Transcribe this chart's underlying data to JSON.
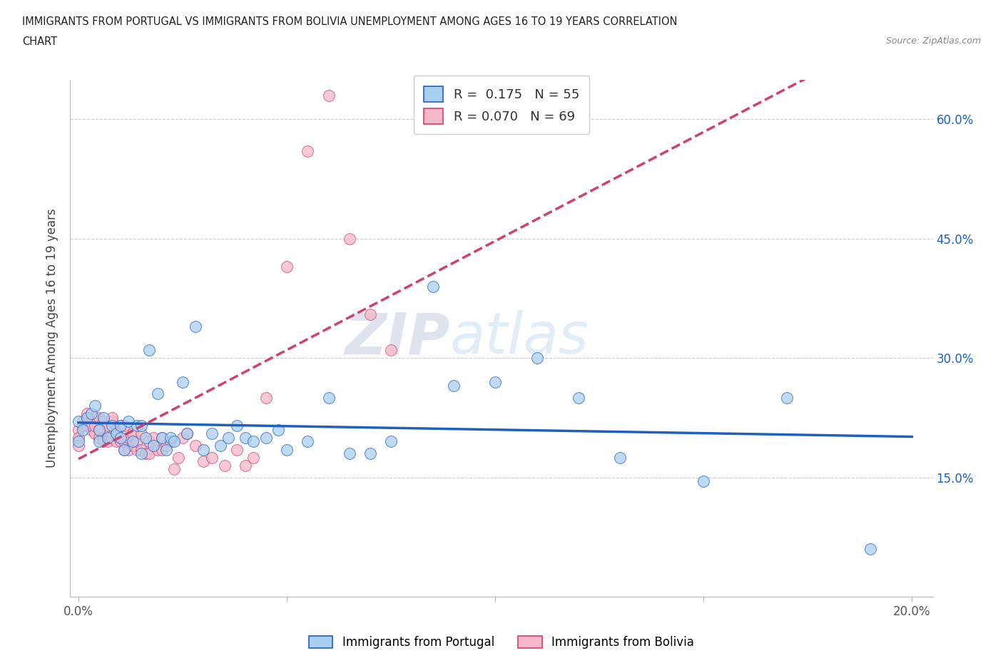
{
  "title_line1": "IMMIGRANTS FROM PORTUGAL VS IMMIGRANTS FROM BOLIVIA UNEMPLOYMENT AMONG AGES 16 TO 19 YEARS CORRELATION",
  "title_line2": "CHART",
  "source": "Source: ZipAtlas.com",
  "ylabel": "Unemployment Among Ages 16 to 19 years",
  "xlim": [
    -0.002,
    0.205
  ],
  "ylim": [
    0.0,
    0.65
  ],
  "xticks": [
    0.0,
    0.05,
    0.1,
    0.15,
    0.2
  ],
  "xticklabels": [
    "0.0%",
    "",
    "",
    "",
    "20.0%"
  ],
  "ytick_positions": [
    0.15,
    0.3,
    0.45,
    0.6
  ],
  "yticklabels": [
    "15.0%",
    "30.0%",
    "45.0%",
    "60.0%"
  ],
  "R_portugal": 0.175,
  "N_portugal": 55,
  "R_bolivia": 0.07,
  "N_bolivia": 69,
  "color_portugal": "#A8D0F0",
  "color_bolivia": "#F5B8C8",
  "line_color_portugal": "#2060C0",
  "line_color_bolivia": "#D04070",
  "watermark": "ZIPatlas",
  "legend_labels": [
    "Immigrants from Portugal",
    "Immigrants from Bolivia"
  ],
  "portugal_scatter_x": [
    0.0,
    0.0,
    0.001,
    0.002,
    0.003,
    0.004,
    0.005,
    0.005,
    0.006,
    0.007,
    0.008,
    0.009,
    0.01,
    0.01,
    0.011,
    0.012,
    0.013,
    0.014,
    0.015,
    0.015,
    0.016,
    0.017,
    0.018,
    0.019,
    0.02,
    0.021,
    0.022,
    0.023,
    0.025,
    0.026,
    0.028,
    0.03,
    0.032,
    0.034,
    0.036,
    0.038,
    0.04,
    0.042,
    0.045,
    0.048,
    0.05,
    0.055,
    0.06,
    0.065,
    0.07,
    0.075,
    0.085,
    0.09,
    0.1,
    0.11,
    0.12,
    0.13,
    0.15,
    0.17,
    0.19
  ],
  "portugal_scatter_y": [
    0.22,
    0.195,
    0.21,
    0.225,
    0.23,
    0.24,
    0.21,
    0.195,
    0.225,
    0.2,
    0.215,
    0.205,
    0.215,
    0.2,
    0.185,
    0.22,
    0.195,
    0.215,
    0.18,
    0.215,
    0.2,
    0.31,
    0.19,
    0.255,
    0.2,
    0.185,
    0.2,
    0.195,
    0.27,
    0.205,
    0.34,
    0.185,
    0.205,
    0.19,
    0.2,
    0.215,
    0.2,
    0.195,
    0.2,
    0.21,
    0.185,
    0.195,
    0.25,
    0.18,
    0.18,
    0.195,
    0.39,
    0.265,
    0.27,
    0.3,
    0.25,
    0.175,
    0.145,
    0.25,
    0.06
  ],
  "bolivia_scatter_x": [
    0.0,
    0.0,
    0.0,
    0.001,
    0.001,
    0.002,
    0.002,
    0.002,
    0.003,
    0.003,
    0.003,
    0.004,
    0.004,
    0.004,
    0.005,
    0.005,
    0.005,
    0.006,
    0.006,
    0.006,
    0.007,
    0.007,
    0.007,
    0.008,
    0.008,
    0.008,
    0.009,
    0.009,
    0.01,
    0.01,
    0.01,
    0.011,
    0.011,
    0.011,
    0.012,
    0.012,
    0.013,
    0.013,
    0.014,
    0.014,
    0.015,
    0.015,
    0.016,
    0.017,
    0.017,
    0.018,
    0.019,
    0.02,
    0.02,
    0.021,
    0.022,
    0.023,
    0.024,
    0.025,
    0.026,
    0.028,
    0.03,
    0.032,
    0.035,
    0.038,
    0.04,
    0.042,
    0.045,
    0.05,
    0.055,
    0.06,
    0.065,
    0.07,
    0.075
  ],
  "bolivia_scatter_y": [
    0.21,
    0.2,
    0.19,
    0.22,
    0.215,
    0.215,
    0.225,
    0.23,
    0.21,
    0.22,
    0.215,
    0.205,
    0.215,
    0.225,
    0.2,
    0.21,
    0.225,
    0.22,
    0.2,
    0.195,
    0.195,
    0.21,
    0.215,
    0.2,
    0.22,
    0.225,
    0.195,
    0.21,
    0.195,
    0.2,
    0.215,
    0.185,
    0.195,
    0.215,
    0.185,
    0.2,
    0.19,
    0.205,
    0.185,
    0.195,
    0.185,
    0.205,
    0.18,
    0.195,
    0.18,
    0.2,
    0.185,
    0.185,
    0.2,
    0.19,
    0.195,
    0.16,
    0.175,
    0.2,
    0.205,
    0.19,
    0.17,
    0.175,
    0.165,
    0.185,
    0.165,
    0.175,
    0.25,
    0.415,
    0.56,
    0.63,
    0.45,
    0.355,
    0.31
  ]
}
